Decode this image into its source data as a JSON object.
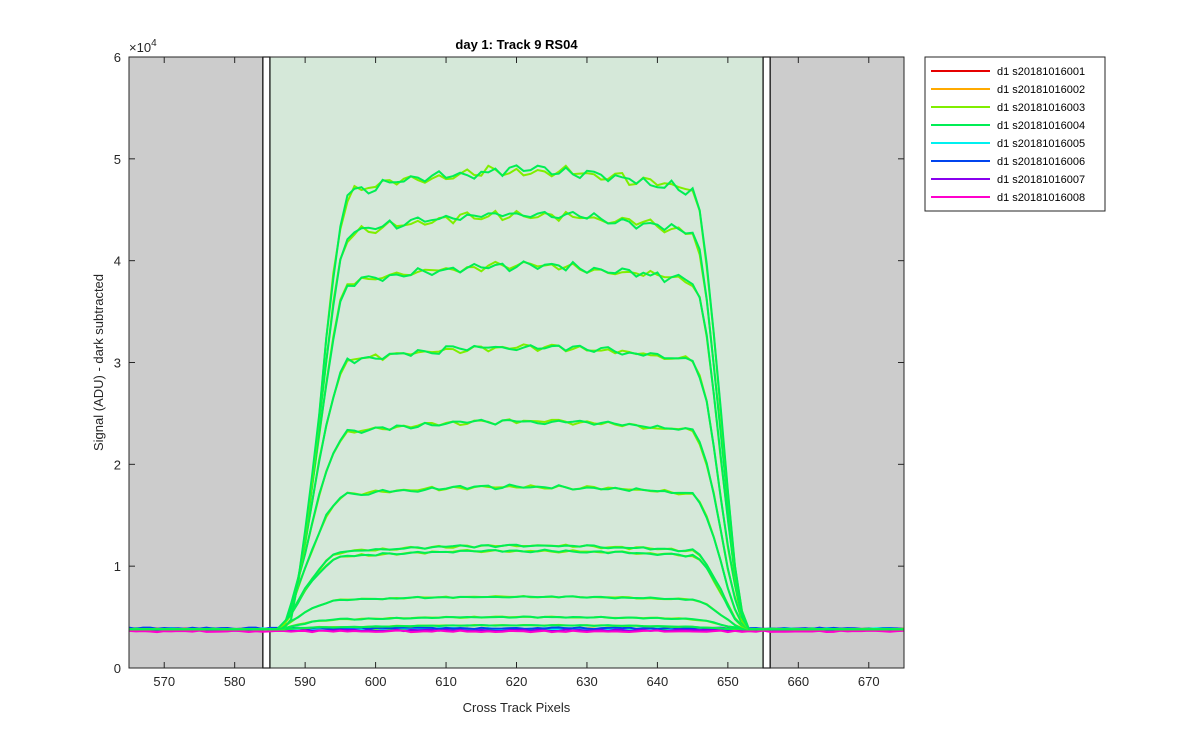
{
  "chart_data": {
    "type": "line",
    "title": "day 1: Track 9  RS04",
    "xlabel": "Cross Track Pixels",
    "ylabel": "Signal (ADU) - dark subtracted",
    "y_exponent_label": "×10",
    "y_exponent_power": "4",
    "xlim": [
      565,
      675
    ],
    "ylim": [
      0,
      60000
    ],
    "x_ticks": [
      570,
      580,
      590,
      600,
      610,
      620,
      630,
      640,
      650,
      660,
      670
    ],
    "y_ticks": [
      0,
      10000,
      20000,
      30000,
      40000,
      50000,
      60000
    ],
    "y_tick_labels": [
      "0",
      "1",
      "2",
      "3",
      "4",
      "5",
      "6"
    ],
    "grid": false,
    "legend_position": "outside-top-right",
    "shaded_regions": [
      {
        "x_range": [
          565,
          584
        ],
        "color": "#cccccc"
      },
      {
        "x_range": [
          585,
          655
        ],
        "color": "#d5e8d9"
      },
      {
        "x_range": [
          656,
          675
        ],
        "color": "#cccccc"
      }
    ],
    "boundary_boxes": [
      {
        "x_range": [
          584,
          585
        ]
      },
      {
        "x_range": [
          655,
          656
        ]
      }
    ],
    "series": [
      {
        "name": "d1 s20181016001",
        "color": "#e60000",
        "baseline": 3800
      },
      {
        "name": "d1 s20181016002",
        "color": "#ffaa00",
        "baseline": 3820
      },
      {
        "name": "d1 s20181016003",
        "color": "#80ee00",
        "baseline": 3810
      },
      {
        "name": "d1 s20181016004",
        "color": "#00ee55",
        "baseline": 3830
      },
      {
        "name": "d1 s20181016005",
        "color": "#00f0f0",
        "baseline": 3850
      },
      {
        "name": "d1 s20181016006",
        "color": "#0044ee",
        "baseline": 3900
      },
      {
        "name": "d1 s20181016007",
        "color": "#8800ee",
        "baseline": 3700
      },
      {
        "name": "d1 s20181016008",
        "color": "#ff00cc",
        "baseline": 3600
      }
    ],
    "profile_levels": [
      4200,
      5000,
      7000,
      11500,
      12000,
      17800,
      24200,
      31500,
      39500,
      44500,
      48800
    ],
    "profile_shape": {
      "rise_start": 586.5,
      "rise_end": 597,
      "plateau_start": 597,
      "plateau_end": 645,
      "fall_end": 653,
      "base": 3800
    }
  }
}
